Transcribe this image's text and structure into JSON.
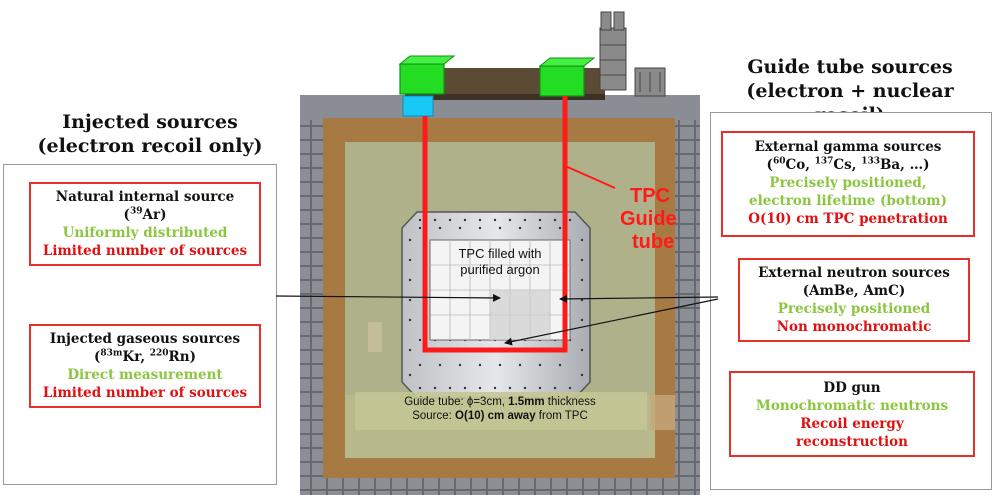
{
  "left": {
    "heading_line1": "Injected sources",
    "heading_line2": "(electron recoil only)",
    "box1": {
      "title": "Natural internal source",
      "isotope_sup": "39",
      "isotope": "Ar",
      "green": "Uniformly distributed",
      "red": "Limited number of sources"
    },
    "box2": {
      "title": "Injected gaseous sources",
      "iso1_sup": "83m",
      "iso1": "Kr",
      "iso2_sup": "220",
      "iso2": "Rn",
      "green": "Direct measurement",
      "red": "Limited number of sources"
    }
  },
  "right": {
    "heading_line1": "Guide tube sources",
    "heading_line2": "(electron + nuclear recoil)",
    "box1": {
      "title": "External gamma sources",
      "iso1_sup": "60",
      "iso1": "Co",
      "iso2_sup": "137",
      "iso2": "Cs",
      "iso3_sup": "133",
      "iso3": "Ba",
      "tail": "…)",
      "green1": "Precisely positioned,",
      "green2": "electron lifetime (bottom)",
      "red": "O(10) cm TPC penetration"
    },
    "box2": {
      "title": "External neutron sources",
      "subtitle": "(AmBe, AmC)",
      "green": "Precisely positioned",
      "red": "Non monochromatic"
    },
    "box3": {
      "title": "DD gun",
      "green": "Monochromatic neutrons",
      "red1": "Recoil energy",
      "red2": "reconstruction"
    }
  },
  "center": {
    "tpc_line1": "TPC filled with",
    "tpc_line2": "purified argon",
    "guide_line1": "TPC",
    "guide_line2": "Guide",
    "guide_line3": "tube",
    "info_line1_a": "Guide tube: ϕ=3cm, ",
    "info_line1_b": "1.5mm",
    "info_line1_c": " thickness",
    "info_line2_a": "Source: ",
    "info_line2_b": "O(10) cm away",
    "info_line2_c": " from TPC"
  },
  "colors": {
    "cryostat_outer": "#7c7f86",
    "shield": "#a77a44",
    "inner_fill": "#aeb18a",
    "guide_tube": "#ff1a1a",
    "source_box": "#22dd22",
    "heading_green": "#8cc63f",
    "heading_red": "#e01010"
  }
}
